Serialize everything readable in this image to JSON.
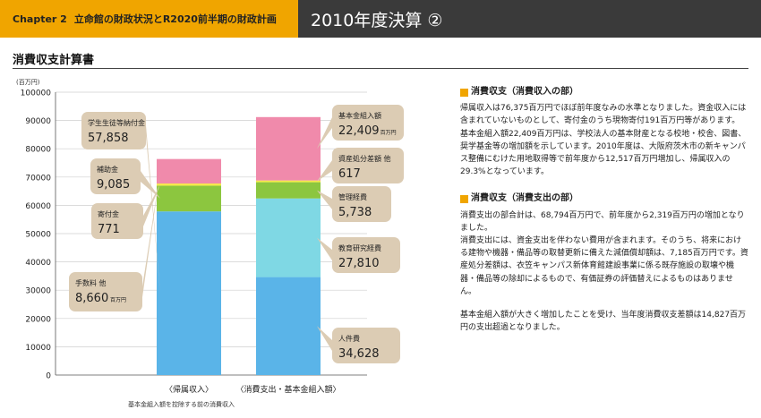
{
  "header": {
    "chapter": "Chapter 2",
    "chapter_title": "立命館の財政状況とR2020前半期の財政計画",
    "page_heading": "2010年度決算 ②"
  },
  "page_title": "消費収支計算書",
  "chart_data": {
    "type": "bar",
    "stacked": true,
    "ylabel": "(百万円)",
    "ylim": [
      0,
      100000
    ],
    "yticks": [
      0,
      10000,
      20000,
      30000,
      40000,
      50000,
      60000,
      70000,
      80000,
      90000,
      100000
    ],
    "yticklabels": [
      "0",
      "10000",
      "20000",
      "30000",
      "40000",
      "50000",
      "60000",
      "70000",
      "80000",
      "90000",
      "100000"
    ],
    "grid": true,
    "categories": [
      "〈帰属収入〉",
      "〈消費支出・基本金組入額〉"
    ],
    "footnote": "基本金組入額を控除する前の消費収入",
    "series": [
      {
        "name": "学生生徒等納付金",
        "stack": 0,
        "value": 57858,
        "display": "57,858",
        "color": "#5ab4e8"
      },
      {
        "name": "補助金",
        "stack": 0,
        "value": 9085,
        "display": "9,085",
        "color": "#8cc63f"
      },
      {
        "name": "寄付金",
        "stack": 0,
        "value": 771,
        "display": "771",
        "color": "#f5e94b"
      },
      {
        "name": "手数料 他",
        "stack": 0,
        "value": 8660,
        "display": "8,660",
        "unit": "百万円",
        "color": "#f08aab"
      },
      {
        "name": "人件費",
        "stack": 1,
        "value": 34628,
        "display": "34,628",
        "color": "#5ab4e8"
      },
      {
        "name": "教育研究経費",
        "stack": 1,
        "value": 27810,
        "display": "27,810",
        "color": "#7fd8e4"
      },
      {
        "name": "管理経費",
        "stack": 1,
        "value": 5738,
        "display": "5,738",
        "color": "#8cc63f"
      },
      {
        "name": "資産処分差額 他",
        "stack": 1,
        "value": 617,
        "display": "617",
        "color": "#f5e94b"
      },
      {
        "name": "基本金組入額",
        "stack": 1,
        "value": 22409,
        "display": "22,409",
        "unit": "百万円",
        "color": "#f08aab"
      }
    ]
  },
  "text": {
    "sec1_title": "消費収支（消費収入の部）",
    "sec1_p1": "帰属収入は76,375百万円でほぼ前年度なみの水準となりました。資金収入には含まれていないものとして、寄付金のうち現物寄付191百万円等があります。",
    "sec1_p2": "基本金組入額22,409百万円は、学校法人の基本財産となる校地・校舎、図書、奨学基金等の増加額を示しています。2010年度は、大阪府茨木市の新キャンパス整備にむけた用地取得等で前年度から12,517百万円増加し、帰属収入の29.3%となっています。",
    "sec2_title": "消費収支（消費支出の部）",
    "sec2_p1": "消費支出の部合計は、68,794百万円で、前年度から2,319百万円の増加となりました。",
    "sec2_p2": "消費支出には、資金支出を伴わない費用が含まれます。そのうち、将来における建物や機器・備品等の取替更新に備えた減価償却額は、7,185百万円です。資産処分差額は、衣笠キャンパス新体育館建設事業に係る既存施設の取壊や機器・備品等の除却によるもので、有価証券の評価替えによるものはありません。",
    "sec3_p1": "基本金組入額が大きく増加したことを受け、当年度消費収支差額は14,827百万円の支出超過となりました。"
  }
}
